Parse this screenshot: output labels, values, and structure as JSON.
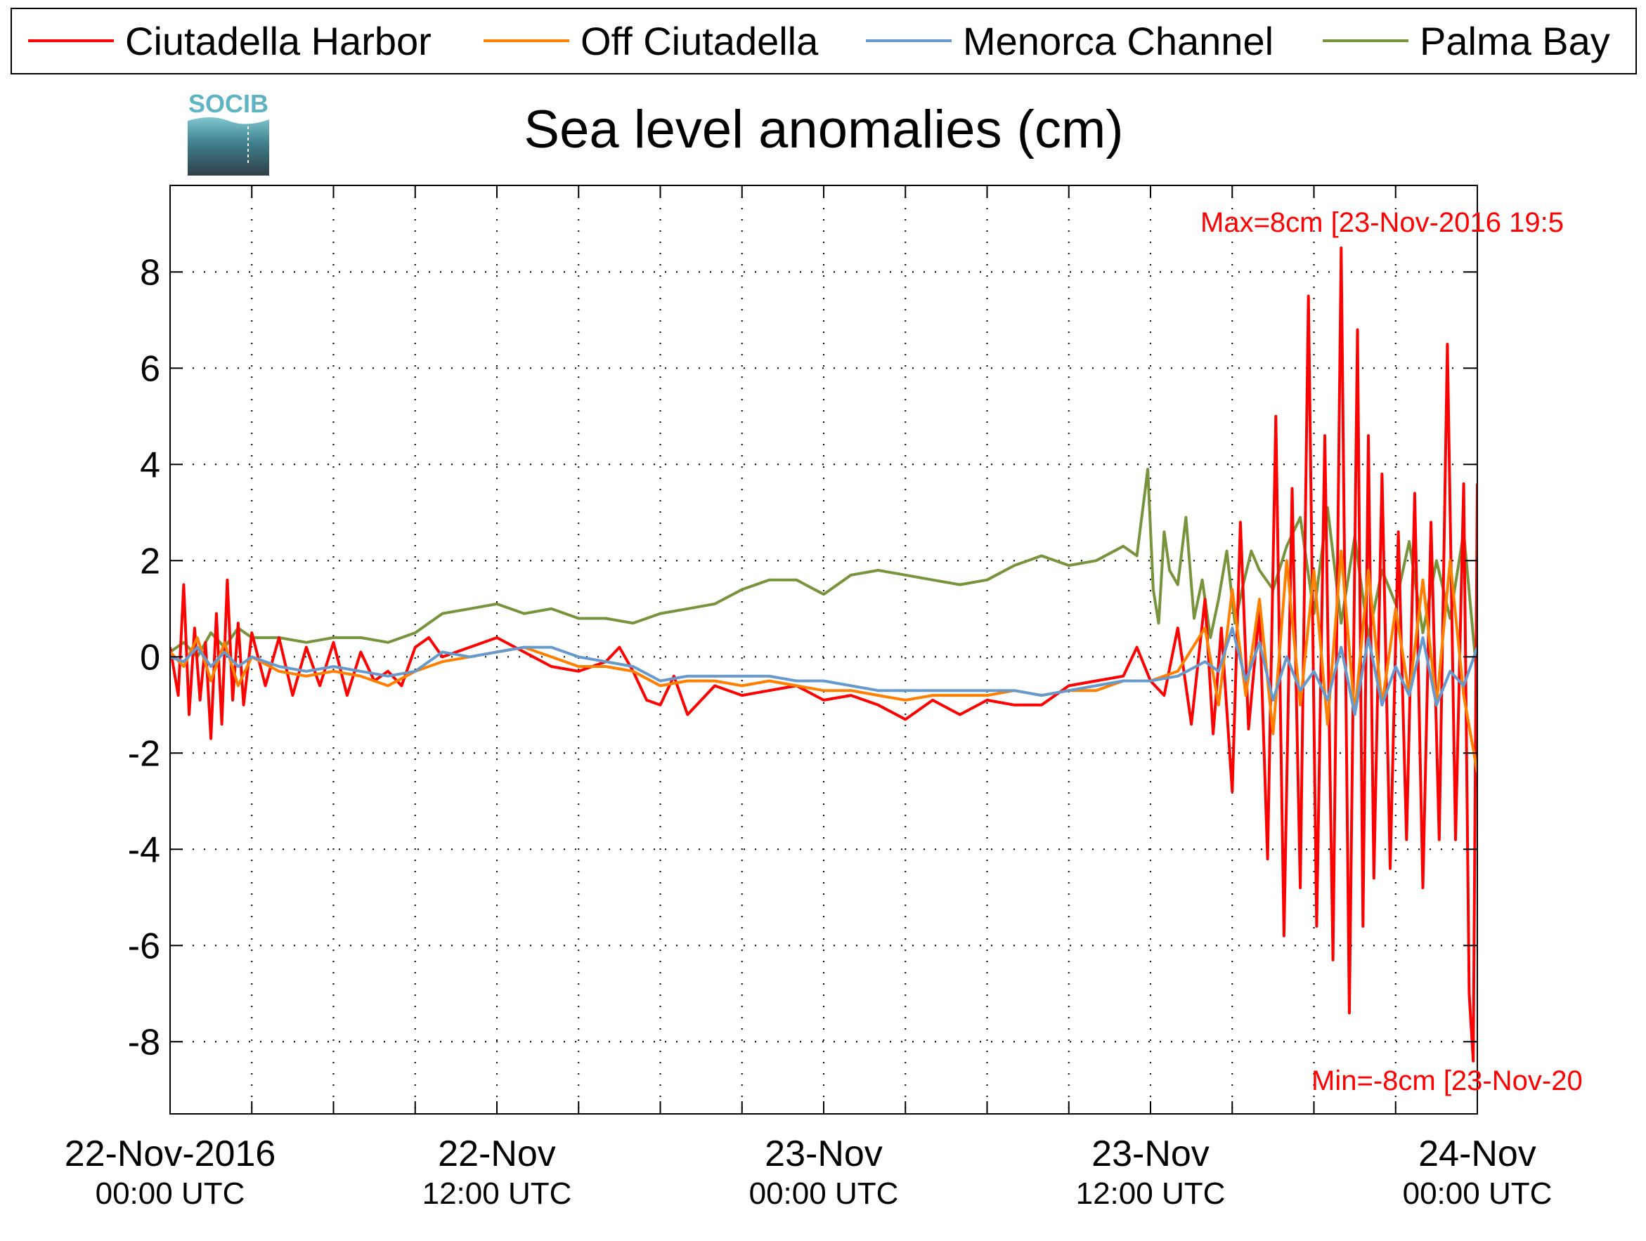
{
  "chart_data": {
    "type": "line",
    "title": "Sea level anomalies (cm)",
    "logo_text": "SOCIB",
    "xlabel": "",
    "ylabel": "",
    "x_unit": "hours since 22-Nov-2016 00:00 UTC",
    "xlim": [
      0,
      48
    ],
    "ylim": [
      -9.5,
      9.8
    ],
    "yticks": [
      8,
      6,
      4,
      2,
      0,
      -2,
      -4,
      -6,
      -8
    ],
    "ytick_labels": [
      "8",
      "6",
      "4",
      "2",
      "0",
      "-2",
      "-4",
      "-6",
      "-8"
    ],
    "xticks": [
      {
        "x": 0,
        "line1": "22-Nov-2016",
        "line2": "00:00 UTC"
      },
      {
        "x": 12,
        "line1": "22-Nov",
        "line2": "12:00 UTC"
      },
      {
        "x": 24,
        "line1": "23-Nov",
        "line2": "00:00 UTC"
      },
      {
        "x": 36,
        "line1": "23-Nov",
        "line2": "12:00 UTC"
      },
      {
        "x": 48,
        "line1": "24-Nov",
        "line2": "00:00 UTC"
      }
    ],
    "minor_xticks": [
      3,
      6,
      9,
      15,
      18,
      21,
      27,
      30,
      33,
      39,
      42,
      45
    ],
    "grid": true,
    "legend_position": "top",
    "annotations": {
      "max": "Max=8cm [23-Nov-2016 19:5",
      "min": "Min=-8cm [23-Nov-20"
    },
    "series": [
      {
        "name": "Ciutadella Harbor",
        "color": "#ff0000",
        "x": [
          0,
          0.3,
          0.5,
          0.7,
          0.9,
          1.1,
          1.3,
          1.5,
          1.7,
          1.9,
          2.1,
          2.3,
          2.5,
          2.7,
          3.0,
          3.5,
          4,
          4.5,
          5,
          5.5,
          6,
          6.5,
          7,
          7.5,
          8,
          8.5,
          9,
          9.5,
          10,
          11,
          12,
          13,
          14,
          15,
          16,
          16.5,
          17,
          17.5,
          18,
          18.5,
          19,
          20,
          21,
          22,
          23,
          24,
          25,
          26,
          27,
          28,
          29,
          30,
          31,
          32,
          33,
          34,
          35,
          35.5,
          36,
          36.5,
          37,
          37.5,
          38,
          38.3,
          38.6,
          39,
          39.3,
          39.6,
          40,
          40.3,
          40.6,
          40.9,
          41.2,
          41.5,
          41.8,
          42.1,
          42.4,
          42.7,
          43,
          43.3,
          43.6,
          43.8,
          44,
          44.2,
          44.5,
          44.8,
          45.1,
          45.4,
          45.7,
          46,
          46.3,
          46.6,
          46.9,
          47.2,
          47.5,
          47.7,
          47.85,
          48
        ],
        "y": [
          0.2,
          -0.8,
          1.5,
          -1.2,
          0.6,
          -0.9,
          0.3,
          -1.7,
          0.9,
          -1.4,
          1.6,
          -0.9,
          0.7,
          -1.0,
          0.5,
          -0.6,
          0.4,
          -0.8,
          0.2,
          -0.6,
          0.3,
          -0.8,
          0.1,
          -0.5,
          -0.3,
          -0.6,
          0.2,
          0.4,
          0.0,
          0.2,
          0.4,
          0.1,
          -0.2,
          -0.3,
          -0.1,
          0.2,
          -0.3,
          -0.9,
          -1.0,
          -0.4,
          -1.2,
          -0.6,
          -0.8,
          -0.7,
          -0.6,
          -0.9,
          -0.8,
          -1.0,
          -1.3,
          -0.9,
          -1.2,
          -0.9,
          -1.0,
          -1.0,
          -0.6,
          -0.5,
          -0.4,
          0.2,
          -0.5,
          -0.8,
          0.6,
          -1.4,
          1.2,
          -1.6,
          0.6,
          -2.8,
          2.8,
          -1.5,
          1.0,
          -4.2,
          5.0,
          -5.8,
          3.5,
          -4.8,
          7.5,
          -5.6,
          4.6,
          -6.3,
          8.5,
          -7.4,
          6.8,
          -5.6,
          4.6,
          -4.6,
          3.8,
          -4.4,
          2.6,
          -3.8,
          3.4,
          -4.8,
          2.8,
          -3.8,
          6.5,
          -3.8,
          3.6,
          -7.0,
          -8.4,
          3.6
        ]
      },
      {
        "name": "Off Ciutadella",
        "color": "#ff8000",
        "x": [
          0,
          0.5,
          1,
          1.5,
          2,
          2.5,
          3,
          4,
          5,
          6,
          7,
          8,
          9,
          10,
          11,
          12,
          13,
          14,
          15,
          16,
          17,
          18,
          19,
          20,
          21,
          22,
          23,
          24,
          25,
          26,
          27,
          28,
          29,
          30,
          31,
          32,
          33,
          34,
          35,
          36,
          37,
          38,
          38.5,
          39,
          39.5,
          40,
          40.5,
          41,
          41.5,
          42,
          42.5,
          43,
          43.5,
          44,
          44.5,
          45,
          45.5,
          46,
          46.5,
          47,
          47.5,
          48
        ],
        "y": [
          0.1,
          -0.2,
          0.4,
          -0.5,
          0.3,
          -0.6,
          0.0,
          -0.3,
          -0.4,
          -0.3,
          -0.4,
          -0.6,
          -0.3,
          -0.1,
          0.0,
          0.1,
          0.2,
          0.0,
          -0.2,
          -0.2,
          -0.3,
          -0.6,
          -0.5,
          -0.5,
          -0.6,
          -0.5,
          -0.6,
          -0.7,
          -0.7,
          -0.8,
          -0.9,
          -0.8,
          -0.8,
          -0.8,
          -0.7,
          -0.8,
          -0.7,
          -0.7,
          -0.5,
          -0.5,
          -0.3,
          0.6,
          -1.0,
          1.4,
          -0.8,
          1.2,
          -1.6,
          2.0,
          -1.0,
          1.8,
          -1.4,
          2.2,
          -1.2,
          1.8,
          -1.0,
          1.0,
          -0.8,
          1.6,
          -1.0,
          2.0,
          -0.8,
          -2.4
        ]
      },
      {
        "name": "Menorca Channel",
        "color": "#6699cc",
        "x": [
          0,
          0.5,
          1,
          1.5,
          2,
          2.5,
          3,
          4,
          5,
          6,
          7,
          8,
          9,
          10,
          11,
          12,
          13,
          14,
          15,
          16,
          17,
          18,
          19,
          20,
          21,
          22,
          23,
          24,
          25,
          26,
          27,
          28,
          29,
          30,
          31,
          32,
          33,
          34,
          35,
          36,
          37,
          38,
          38.5,
          39,
          39.5,
          40,
          40.5,
          41,
          41.5,
          42,
          42.5,
          43,
          43.5,
          44,
          44.5,
          45,
          45.5,
          46,
          46.5,
          47,
          47.5,
          48
        ],
        "y": [
          0.0,
          -0.1,
          0.2,
          -0.2,
          0.1,
          -0.2,
          0.0,
          -0.2,
          -0.3,
          -0.2,
          -0.3,
          -0.4,
          -0.3,
          0.1,
          0.0,
          0.1,
          0.2,
          0.2,
          0.0,
          -0.1,
          -0.2,
          -0.5,
          -0.4,
          -0.4,
          -0.4,
          -0.4,
          -0.5,
          -0.5,
          -0.6,
          -0.7,
          -0.7,
          -0.7,
          -0.7,
          -0.7,
          -0.7,
          -0.8,
          -0.7,
          -0.6,
          -0.5,
          -0.5,
          -0.4,
          -0.1,
          -0.3,
          0.6,
          -0.5,
          0.3,
          -0.9,
          0.0,
          -0.7,
          -0.3,
          -0.9,
          0.2,
          -1.2,
          0.4,
          -1.0,
          -0.2,
          -0.8,
          0.4,
          -1.0,
          -0.3,
          -0.6,
          0.2
        ]
      },
      {
        "name": "Palma Bay",
        "color": "#77933c",
        "x": [
          0,
          0.5,
          1,
          1.5,
          2,
          2.5,
          3,
          4,
          5,
          6,
          7,
          8,
          9,
          10,
          11,
          12,
          13,
          14,
          15,
          16,
          17,
          18,
          19,
          20,
          21,
          22,
          23,
          24,
          25,
          26,
          27,
          28,
          29,
          30,
          31,
          32,
          33,
          34,
          35,
          35.5,
          35.9,
          36.1,
          36.3,
          36.5,
          36.7,
          37,
          37.3,
          37.6,
          37.9,
          38.2,
          38.5,
          38.8,
          39.1,
          39.4,
          39.7,
          40,
          40.5,
          41,
          41.5,
          42,
          42.5,
          43,
          43.5,
          44,
          44.5,
          45,
          45.5,
          46,
          46.5,
          47,
          47.5,
          48
        ],
        "y": [
          0.1,
          0.3,
          0.0,
          0.5,
          0.2,
          0.6,
          0.4,
          0.4,
          0.3,
          0.4,
          0.4,
          0.3,
          0.5,
          0.9,
          1.0,
          1.1,
          0.9,
          1.0,
          0.8,
          0.8,
          0.7,
          0.9,
          1.0,
          1.1,
          1.4,
          1.6,
          1.6,
          1.3,
          1.7,
          1.8,
          1.7,
          1.6,
          1.5,
          1.6,
          1.9,
          2.1,
          1.9,
          2.0,
          2.3,
          2.1,
          3.9,
          1.4,
          0.7,
          2.6,
          1.8,
          1.5,
          2.9,
          0.8,
          1.6,
          0.4,
          1.2,
          2.2,
          0.7,
          1.5,
          2.2,
          1.8,
          1.4,
          2.3,
          2.9,
          0.9,
          3.1,
          0.7,
          2.5,
          0.4,
          1.8,
          1.1,
          2.4,
          0.5,
          2.0,
          0.8,
          2.6,
          -0.5
        ]
      }
    ]
  }
}
